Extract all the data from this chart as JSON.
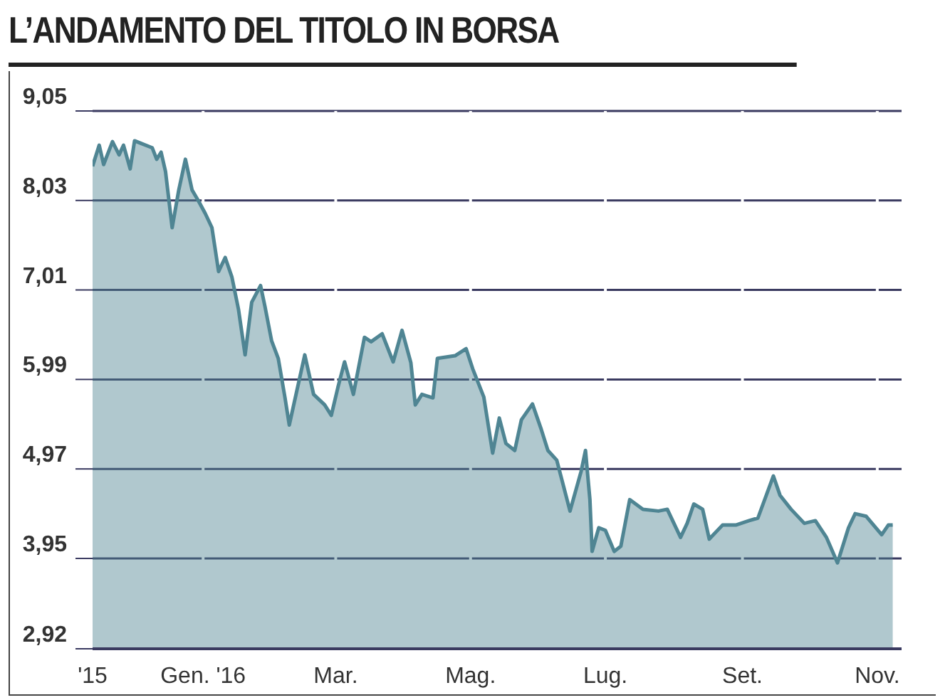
{
  "chart_data": {
    "type": "area",
    "title": "L’ANDAMENTO DEL TITOLO IN BORSA",
    "x": [
      "2015-11-12",
      "2015-11-15",
      "2015-11-17",
      "2015-11-21",
      "2015-11-24",
      "2015-11-26",
      "2015-11-29",
      "2015-12-01",
      "2015-12-04",
      "2015-12-09",
      "2015-12-11",
      "2015-12-13",
      "2015-12-15",
      "2015-12-18",
      "2015-12-21",
      "2015-12-24",
      "2015-12-27",
      "2015-12-30",
      "2016-01-02",
      "2016-01-05",
      "2016-01-08",
      "2016-01-11",
      "2016-01-14",
      "2016-01-17",
      "2016-01-20",
      "2016-01-23",
      "2016-01-27",
      "2016-01-29",
      "2016-02-01",
      "2016-02-04",
      "2016-02-07",
      "2016-02-09",
      "2016-02-11",
      "2016-02-16",
      "2016-02-20",
      "2016-02-25",
      "2016-02-28",
      "2016-03-02",
      "2016-03-05",
      "2016-03-09",
      "2016-03-14",
      "2016-03-17",
      "2016-03-22",
      "2016-03-27",
      "2016-03-31",
      "2016-04-04",
      "2016-04-06",
      "2016-04-09",
      "2016-04-14",
      "2016-04-16",
      "2016-04-24",
      "2016-04-29",
      "2016-05-02",
      "2016-05-07",
      "2016-05-11",
      "2016-05-14",
      "2016-05-17",
      "2016-05-21",
      "2016-05-24",
      "2016-05-29",
      "2016-06-02",
      "2016-06-05",
      "2016-06-09",
      "2016-06-15",
      "2016-06-20",
      "2016-06-22",
      "2016-06-24",
      "2016-06-25",
      "2016-06-28",
      "2016-07-01",
      "2016-07-05",
      "2016-07-08",
      "2016-07-12",
      "2016-07-18",
      "2016-07-25",
      "2016-07-29",
      "2016-08-04",
      "2016-08-07",
      "2016-08-10",
      "2016-08-14",
      "2016-08-17",
      "2016-08-23",
      "2016-08-29",
      "2016-09-04",
      "2016-09-08",
      "2016-09-15",
      "2016-09-18",
      "2016-09-23",
      "2016-09-29",
      "2016-10-04",
      "2016-10-09",
      "2016-10-14",
      "2016-10-19",
      "2016-10-22",
      "2016-10-27",
      "2016-11-03",
      "2016-11-06",
      "2016-11-08"
    ],
    "series": [
      {
        "color": "#4f8593",
        "values": [
          8.42,
          8.66,
          8.44,
          8.7,
          8.55,
          8.66,
          8.39,
          8.71,
          8.68,
          8.63,
          8.5,
          8.58,
          8.36,
          7.72,
          8.15,
          8.5,
          8.15,
          8.02,
          7.88,
          7.72,
          7.22,
          7.38,
          7.16,
          6.79,
          6.27,
          6.87,
          7.06,
          6.82,
          6.43,
          6.23,
          5.79,
          5.47,
          5.7,
          6.27,
          5.82,
          5.7,
          5.58,
          5.9,
          6.19,
          5.82,
          6.47,
          6.42,
          6.51,
          6.19,
          6.55,
          6.18,
          5.7,
          5.82,
          5.78,
          6.23,
          6.26,
          6.34,
          6.11,
          5.79,
          5.15,
          5.55,
          5.26,
          5.18,
          5.53,
          5.71,
          5.42,
          5.18,
          5.07,
          4.49,
          4.94,
          5.18,
          4.62,
          4.03,
          4.3,
          4.27,
          4.03,
          4.09,
          4.62,
          4.51,
          4.49,
          4.51,
          4.19,
          4.35,
          4.57,
          4.51,
          4.17,
          4.33,
          4.33,
          4.38,
          4.41,
          4.89,
          4.67,
          4.51,
          4.35,
          4.38,
          4.19,
          3.9,
          4.3,
          4.46,
          4.43,
          4.22,
          4.33,
          4.33
        ]
      }
    ],
    "xlim": [
      "2015-11-12",
      "2016-11-12"
    ],
    "xticks": [
      {
        "value": "2015-11-12",
        "label": "'15"
      },
      {
        "value": "2016-01-01",
        "label": "Gen. '16"
      },
      {
        "value": "2016-03-01",
        "label": "Mar."
      },
      {
        "value": "2016-05-01",
        "label": "Mag."
      },
      {
        "value": "2016-07-01",
        "label": "Lug."
      },
      {
        "value": "2016-09-01",
        "label": "Set."
      },
      {
        "value": "2016-11-01",
        "label": "Nov."
      }
    ],
    "ylim": [
      2.92,
      9.05
    ],
    "yticks": [
      {
        "value": 2.92,
        "label": "2,92"
      },
      {
        "value": 3.95,
        "label": "3,95"
      },
      {
        "value": 4.97,
        "label": "4,97"
      },
      {
        "value": 5.99,
        "label": "5,99"
      },
      {
        "value": 7.01,
        "label": "7,01"
      },
      {
        "value": 8.03,
        "label": "8,03"
      },
      {
        "value": 9.05,
        "label": "9,05"
      }
    ],
    "grid": true,
    "legend": false
  }
}
